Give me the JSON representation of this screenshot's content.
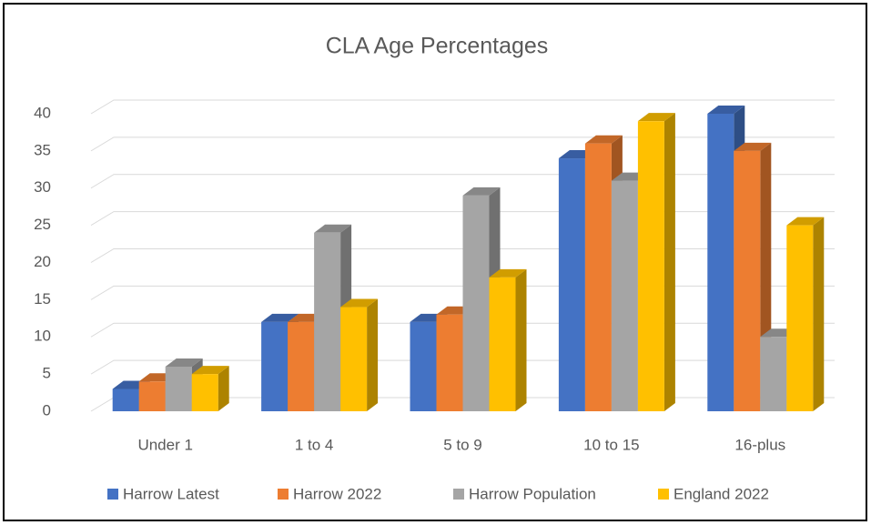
{
  "chart_data": {
    "type": "bar3d",
    "title": "CLA Age Percentages",
    "categories": [
      "Under 1",
      "1 to 4",
      "5 to 9",
      "10 to 15",
      "16-plus"
    ],
    "series": [
      {
        "name": "Harrow Latest",
        "color": "#4472c4",
        "values": [
          3,
          12,
          12,
          34,
          40
        ]
      },
      {
        "name": "Harrow 2022",
        "color": "#ed7d31",
        "values": [
          4,
          12,
          13,
          36,
          35
        ]
      },
      {
        "name": "Harrow Population",
        "color": "#a5a5a5",
        "values": [
          6,
          24,
          29,
          31,
          10
        ]
      },
      {
        "name": "England 2022",
        "color": "#ffc000",
        "values": [
          5,
          14,
          18,
          39,
          25
        ]
      }
    ],
    "ylim": [
      0,
      40
    ],
    "yticks": [
      0,
      5,
      10,
      15,
      20,
      25,
      30,
      35,
      40
    ],
    "grid": true,
    "legend": "bottom"
  }
}
